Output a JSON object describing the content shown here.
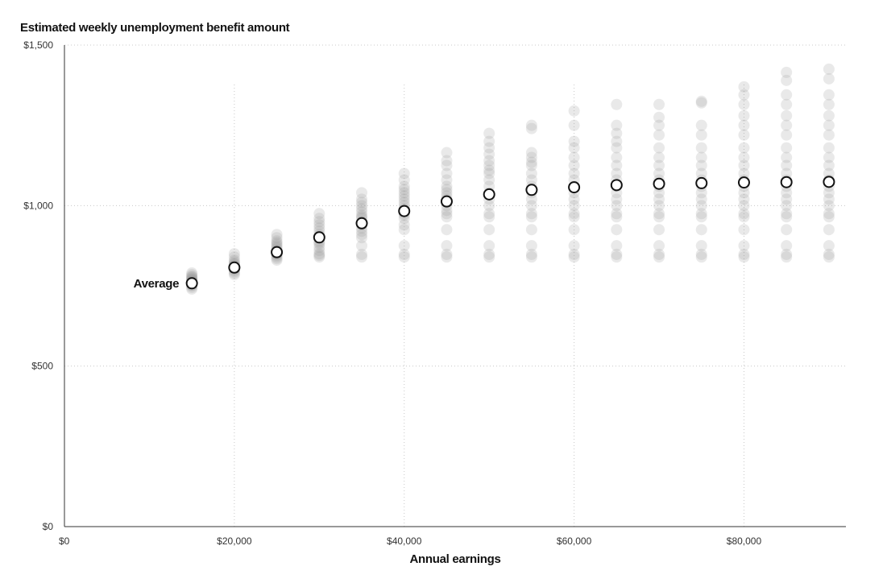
{
  "chart_data": {
    "type": "scatter",
    "title": "Estimated weekly unemployment benefit amount",
    "xlabel": "Annual earnings",
    "ylabel": "",
    "xlim": [
      0,
      92000
    ],
    "ylim": [
      0,
      1500
    ],
    "x_ticks": [
      {
        "value": 0,
        "label": "$0"
      },
      {
        "value": 20000,
        "label": "$20,000"
      },
      {
        "value": 40000,
        "label": "$40,000"
      },
      {
        "value": 60000,
        "label": "$60,000"
      },
      {
        "value": 80000,
        "label": "$80,000"
      }
    ],
    "y_ticks": [
      {
        "value": 0,
        "label": "$0"
      },
      {
        "value": 500,
        "label": "$500"
      },
      {
        "value": 1000,
        "label": "$1,000"
      },
      {
        "value": 1500,
        "label": "$1,500"
      }
    ],
    "grid": true,
    "annotation": {
      "text": "Average",
      "x": 15000,
      "y": 758
    },
    "average": {
      "x": [
        15000,
        20000,
        25000,
        30000,
        35000,
        40000,
        45000,
        50000,
        55000,
        60000,
        65000,
        70000,
        75000,
        80000,
        85000,
        90000
      ],
      "y": [
        758,
        807,
        855,
        901,
        945,
        983,
        1013,
        1035,
        1049,
        1057,
        1064,
        1068,
        1070,
        1072,
        1073,
        1074
      ]
    },
    "states": {
      "x": [
        15000,
        20000,
        25000,
        30000,
        35000,
        40000,
        45000,
        50000,
        55000,
        60000,
        65000,
        70000,
        75000,
        80000,
        85000,
        90000
      ],
      "y": [
        [
          740,
          745,
          750,
          752,
          755,
          758,
          760,
          763,
          765,
          768,
          770,
          772,
          775,
          778,
          780,
          785,
          790
        ],
        [
          785,
          790,
          795,
          800,
          805,
          808,
          810,
          812,
          815,
          818,
          820,
          825,
          830,
          840,
          850
        ],
        [
          830,
          835,
          840,
          845,
          848,
          850,
          853,
          856,
          860,
          865,
          870,
          875,
          880,
          885,
          890,
          900,
          910
        ],
        [
          840,
          845,
          850,
          860,
          870,
          880,
          885,
          890,
          900,
          905,
          910,
          920,
          930,
          940,
          950,
          960,
          975
        ],
        [
          840,
          848,
          875,
          900,
          910,
          920,
          930,
          940,
          945,
          950,
          960,
          965,
          970,
          980,
          990,
          1000,
          1010,
          1020,
          1040
        ],
        [
          840,
          848,
          875,
          925,
          940,
          960,
          970,
          975,
          985,
          990,
          1000,
          1010,
          1020,
          1030,
          1040,
          1050,
          1060,
          1080,
          1100
        ],
        [
          840,
          848,
          875,
          925,
          965,
          975,
          985,
          1000,
          1010,
          1020,
          1030,
          1040,
          1050,
          1060,
          1080,
          1100,
          1125,
          1140,
          1165
        ],
        [
          840,
          848,
          875,
          925,
          965,
          975,
          1000,
          1020,
          1040,
          1060,
          1080,
          1100,
          1110,
          1125,
          1140,
          1160,
          1180,
          1200,
          1225
        ],
        [
          840,
          848,
          875,
          925,
          965,
          975,
          1000,
          1020,
          1040,
          1060,
          1080,
          1100,
          1125,
          1135,
          1150,
          1165,
          1240,
          1250
        ],
        [
          840,
          848,
          875,
          925,
          965,
          975,
          1000,
          1020,
          1040,
          1060,
          1080,
          1100,
          1125,
          1150,
          1180,
          1200,
          1250,
          1295
        ],
        [
          840,
          848,
          875,
          925,
          965,
          975,
          1000,
          1020,
          1040,
          1060,
          1080,
          1100,
          1125,
          1150,
          1180,
          1200,
          1225,
          1250,
          1315
        ],
        [
          840,
          848,
          875,
          925,
          965,
          975,
          1000,
          1020,
          1040,
          1060,
          1080,
          1100,
          1125,
          1150,
          1180,
          1220,
          1250,
          1275,
          1315
        ],
        [
          840,
          848,
          875,
          925,
          965,
          975,
          1000,
          1020,
          1040,
          1060,
          1080,
          1100,
          1125,
          1150,
          1180,
          1220,
          1250,
          1320,
          1325
        ],
        [
          840,
          848,
          875,
          925,
          965,
          975,
          1000,
          1020,
          1040,
          1060,
          1080,
          1100,
          1125,
          1150,
          1180,
          1220,
          1250,
          1280,
          1315,
          1345,
          1370
        ],
        [
          840,
          848,
          875,
          925,
          965,
          975,
          1000,
          1020,
          1040,
          1060,
          1080,
          1100,
          1125,
          1150,
          1180,
          1220,
          1250,
          1280,
          1315,
          1345,
          1390,
          1415
        ],
        [
          840,
          848,
          875,
          925,
          965,
          975,
          1000,
          1020,
          1040,
          1060,
          1080,
          1100,
          1125,
          1150,
          1180,
          1220,
          1250,
          1280,
          1315,
          1345,
          1395,
          1425
        ]
      ]
    },
    "colors": {
      "state_dot": "#9a9a9a",
      "average_fill": "#ffffff",
      "average_stroke": "#121212",
      "axis": "#333333",
      "grid": "#c8c8c8"
    }
  }
}
